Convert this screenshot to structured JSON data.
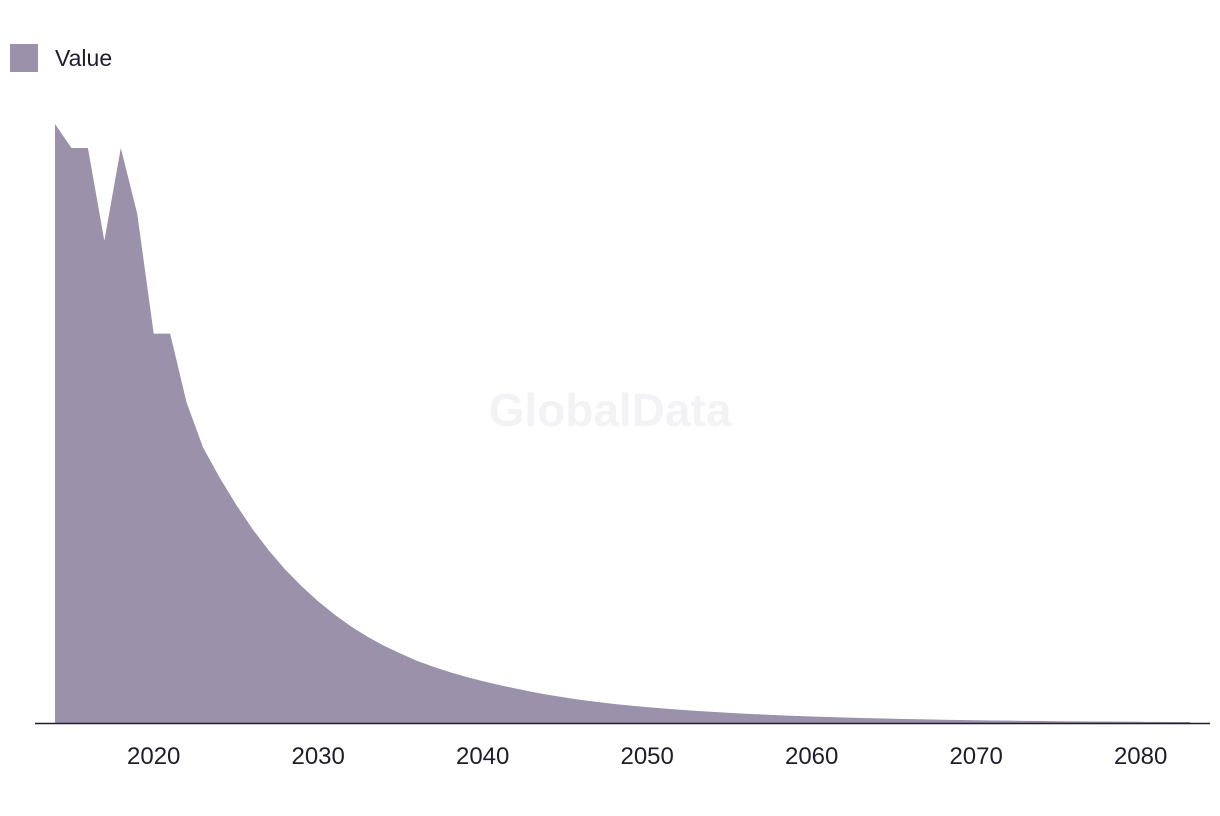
{
  "legend": {
    "label": "Value"
  },
  "watermark": "GlobalData",
  "colors": {
    "area": "#9b91aa",
    "axis": "#1f1d2b",
    "text": "#1f1d2b",
    "watermark": "#f3f2f5"
  },
  "chart_data": {
    "type": "area",
    "title": "",
    "xlabel": "",
    "ylabel": "",
    "legend_position": "top-left",
    "grid": false,
    "xlim": [
      2014,
      2083
    ],
    "ylim": [
      0,
      100
    ],
    "x_ticks": [
      2020,
      2030,
      2040,
      2050,
      2060,
      2070,
      2080
    ],
    "series": [
      {
        "name": "Value",
        "x": [
          2014,
          2015,
          2016,
          2017,
          2018,
          2019,
          2020,
          2021,
          2022,
          2023,
          2024,
          2025,
          2026,
          2027,
          2028,
          2029,
          2030,
          2031,
          2032,
          2033,
          2034,
          2035,
          2036,
          2037,
          2038,
          2039,
          2040,
          2041,
          2042,
          2043,
          2044,
          2045,
          2046,
          2047,
          2048,
          2049,
          2050,
          2051,
          2052,
          2053,
          2054,
          2055,
          2056,
          2057,
          2058,
          2059,
          2060,
          2061,
          2062,
          2063,
          2064,
          2065,
          2066,
          2067,
          2068,
          2069,
          2070,
          2071,
          2072,
          2073,
          2074,
          2075,
          2076,
          2077,
          2078,
          2079,
          2080,
          2081,
          2082,
          2083
        ],
        "values": [
          100,
          96,
          96,
          80.5,
          96,
          85,
          65,
          65,
          53.5,
          46,
          41,
          36.5,
          32.4,
          28.8,
          25.6,
          22.8,
          20.3,
          18.1,
          16.1,
          14.4,
          12.9,
          11.6,
          10.4,
          9.4,
          8.5,
          7.7,
          7.0,
          6.35,
          5.75,
          5.2,
          4.7,
          4.25,
          3.85,
          3.5,
          3.18,
          2.9,
          2.65,
          2.42,
          2.21,
          2.02,
          1.85,
          1.69,
          1.55,
          1.42,
          1.3,
          1.19,
          1.09,
          1.0,
          0.92,
          0.84,
          0.77,
          0.71,
          0.65,
          0.6,
          0.55,
          0.5,
          0.46,
          0.42,
          0.39,
          0.36,
          0.33,
          0.3,
          0.28,
          0.26,
          0.24,
          0.22,
          0.2,
          0.18,
          0.17,
          0.16
        ]
      }
    ]
  }
}
